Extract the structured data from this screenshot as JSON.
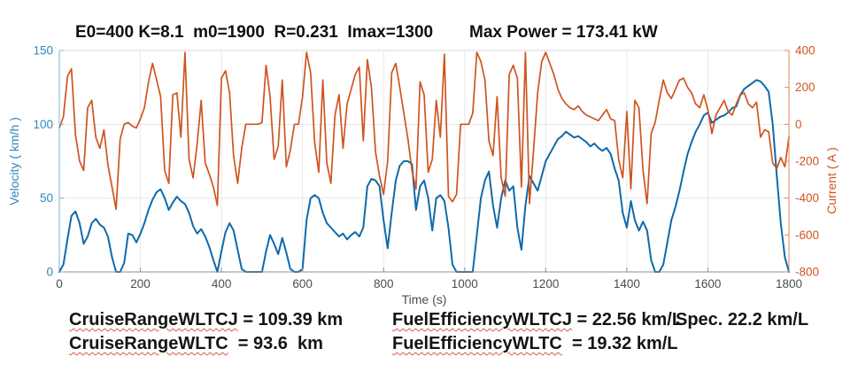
{
  "header": {
    "parameters": "E0=400 K=8.1  m0=1900  R=0.231  Imax=1300",
    "max_power": "Max Power = 173.41 kW"
  },
  "chart_data": {
    "type": "line",
    "title": "",
    "xlabel": "Time (s)",
    "grid": true,
    "x_axis": {
      "label": "Time (s)",
      "lim": [
        0,
        1800
      ],
      "ticks": [
        0,
        200,
        400,
        600,
        800,
        1000,
        1200,
        1400,
        1600,
        1800
      ],
      "tick_color": "#4d4d4d",
      "spine_color": "#8f8f8f"
    },
    "left_axis": {
      "label": "Velocity ( km/h )",
      "lim": [
        0,
        150
      ],
      "ticks": [
        0,
        50,
        100,
        150
      ],
      "tick_color": "#2f87bd",
      "spine_color": "#7db4d6"
    },
    "right_axis": {
      "label": "Current ( A )",
      "lim": [
        -800,
        400
      ],
      "ticks": [
        -800,
        -600,
        -400,
        -200,
        0,
        200,
        400
      ],
      "tick_color": "#cf5420",
      "spine_color": "#dd8a5e"
    },
    "grid_color": "#e7e7e7",
    "top_spine_color": "#d5d9dc",
    "series": [
      {
        "name": "Velocity",
        "axis": "left",
        "color": "#0e6aab",
        "width": 2,
        "x_start": 0,
        "x_step": 10,
        "values": [
          0,
          5,
          22,
          38,
          41,
          33,
          19,
          24,
          33,
          36,
          32,
          30,
          24,
          10,
          0,
          0,
          6,
          26,
          25,
          20,
          26,
          33,
          42,
          49,
          54,
          56,
          50,
          42,
          47,
          51,
          48,
          46,
          40,
          31,
          26,
          29,
          24,
          17,
          8,
          0,
          14,
          27,
          33,
          28,
          15,
          2,
          0,
          0,
          0,
          0,
          0,
          14,
          25,
          19,
          12,
          23,
          13,
          2,
          0,
          0,
          2,
          35,
          50,
          52,
          50,
          40,
          33,
          30,
          27,
          24,
          26,
          22,
          25,
          27,
          24,
          30,
          58,
          63,
          62,
          58,
          35,
          16,
          40,
          62,
          72,
          75,
          75,
          73,
          42,
          58,
          62,
          50,
          28,
          50,
          52,
          48,
          30,
          5,
          0,
          0,
          0,
          0,
          0,
          25,
          50,
          62,
          68,
          45,
          30,
          50,
          62,
          55,
          58,
          30,
          15,
          45,
          65,
          60,
          55,
          65,
          75,
          80,
          85,
          90,
          92,
          95,
          93,
          91,
          92,
          90,
          88,
          85,
          87,
          84,
          82,
          84,
          80,
          70,
          62,
          40,
          30,
          48,
          35,
          28,
          34,
          28,
          8,
          0,
          0,
          5,
          20,
          35,
          44,
          55,
          68,
          80,
          88,
          95,
          100,
          106,
          108,
          101,
          103,
          105,
          106,
          108,
          111,
          112,
          120,
          124,
          126,
          128,
          130,
          129,
          126,
          122,
          100,
          65,
          33,
          10,
          0
        ]
      },
      {
        "name": "Current",
        "axis": "right",
        "color": "#cf5420",
        "width": 1.7,
        "x_start": 0,
        "x_step": 10,
        "values": [
          -20,
          40,
          260,
          300,
          -60,
          -200,
          -250,
          90,
          130,
          -70,
          -130,
          -30,
          -220,
          -340,
          -460,
          -80,
          0,
          10,
          -10,
          -20,
          30,
          90,
          230,
          330,
          240,
          150,
          -250,
          -320,
          160,
          170,
          -70,
          390,
          -190,
          -290,
          -110,
          130,
          -210,
          -270,
          -340,
          -440,
          250,
          290,
          170,
          -170,
          -320,
          -130,
          0,
          0,
          0,
          0,
          10,
          320,
          150,
          -190,
          -120,
          240,
          -230,
          -140,
          0,
          0,
          150,
          390,
          280,
          -100,
          -260,
          240,
          -210,
          -320,
          50,
          160,
          -130,
          110,
          190,
          270,
          310,
          -90,
          350,
          200,
          -150,
          -280,
          -380,
          -200,
          280,
          330,
          200,
          60,
          -80,
          -250,
          -350,
          230,
          160,
          -260,
          -190,
          130,
          -70,
          380,
          -390,
          -420,
          -380,
          0,
          0,
          0,
          60,
          390,
          340,
          240,
          -90,
          -170,
          150,
          -290,
          -390,
          270,
          320,
          250,
          -340,
          390,
          -430,
          -140,
          170,
          340,
          390,
          330,
          270,
          190,
          140,
          110,
          90,
          80,
          100,
          70,
          50,
          40,
          30,
          20,
          50,
          80,
          30,
          20,
          -190,
          -290,
          70,
          -350,
          130,
          90,
          -250,
          -430,
          -50,
          10,
          130,
          240,
          170,
          140,
          190,
          240,
          250,
          200,
          170,
          110,
          90,
          160,
          80,
          -50,
          50,
          90,
          130,
          70,
          50,
          110,
          160,
          170,
          110,
          90,
          120,
          -70,
          -30,
          -40,
          -210,
          -240,
          -180,
          -230,
          -70
        ]
      }
    ]
  },
  "results": {
    "rows": [
      {
        "label": "CruiseRangeWLTCJ",
        "rest": " = 109.39 km"
      },
      {
        "label": "CruiseRangeWLTC",
        "rest": "  = 93.6  km"
      },
      {
        "label": "FuelEfficiencyWLTCJ",
        "rest": " = 22.56 km/L"
      },
      {
        "label": "FuelEfficiencyWLTC",
        "rest": "  = 19.32 km/L"
      }
    ],
    "spec": "Spec. 22.2 km/L"
  }
}
